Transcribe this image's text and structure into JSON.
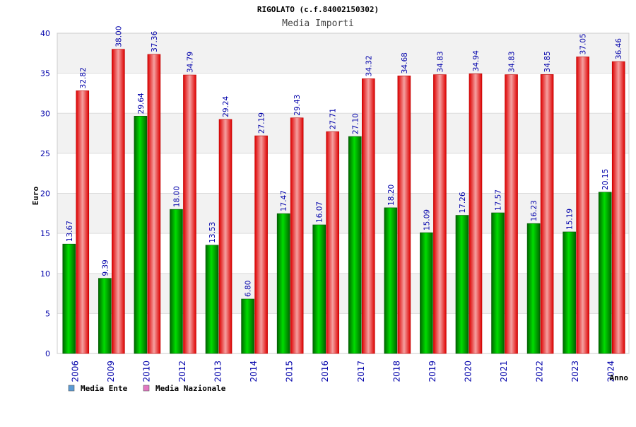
{
  "chart_data": {
    "type": "bar",
    "title": "RIGOLATO (c.f.84002150302)",
    "subtitle": "Media Importi",
    "xlabel": "Anno",
    "ylabel": "Euro",
    "ylim": [
      0,
      40
    ],
    "yticks": [
      "0",
      "5",
      "10",
      "15",
      "20",
      "25",
      "30",
      "35",
      "40"
    ],
    "grid": true,
    "legend_position": "bottom-left",
    "categories": [
      "2006",
      "2009",
      "2010",
      "2012",
      "2013",
      "2014",
      "2015",
      "2016",
      "2017",
      "2018",
      "2019",
      "2020",
      "2021",
      "2022",
      "2023",
      "2024"
    ],
    "series": [
      {
        "name": "Media Ente",
        "color": "#00aa00",
        "values": [
          13.67,
          9.39,
          29.64,
          18.0,
          13.53,
          6.8,
          17.47,
          16.07,
          27.1,
          18.2,
          15.09,
          17.26,
          17.57,
          16.23,
          15.19,
          20.15
        ],
        "labels": [
          "13.67",
          "9.39",
          "29.64",
          "18.00",
          "13.53",
          "6.80",
          "17.47",
          "16.07",
          "27.10",
          "18.20",
          "15.09",
          "17.26",
          "17.57",
          "16.23",
          "15.19",
          "20.15"
        ]
      },
      {
        "name": "Media Nazionale",
        "color": "#ee0000",
        "values": [
          32.82,
          38.0,
          37.36,
          34.79,
          29.24,
          27.19,
          29.43,
          27.71,
          34.32,
          34.68,
          34.83,
          34.94,
          34.83,
          34.85,
          37.05,
          36.46
        ],
        "labels": [
          "32.82",
          "38.00",
          "37.36",
          "34.79",
          "29.24",
          "27.19",
          "29.43",
          "27.71",
          "34.32",
          "34.68",
          "34.83",
          "34.94",
          "34.83",
          "34.85",
          "37.05",
          "36.46"
        ]
      }
    ],
    "legend": [
      {
        "label": "Media Ente",
        "color": "#5b9bd5"
      },
      {
        "label": "Media Nazionale",
        "color": "#e377c2"
      }
    ]
  }
}
